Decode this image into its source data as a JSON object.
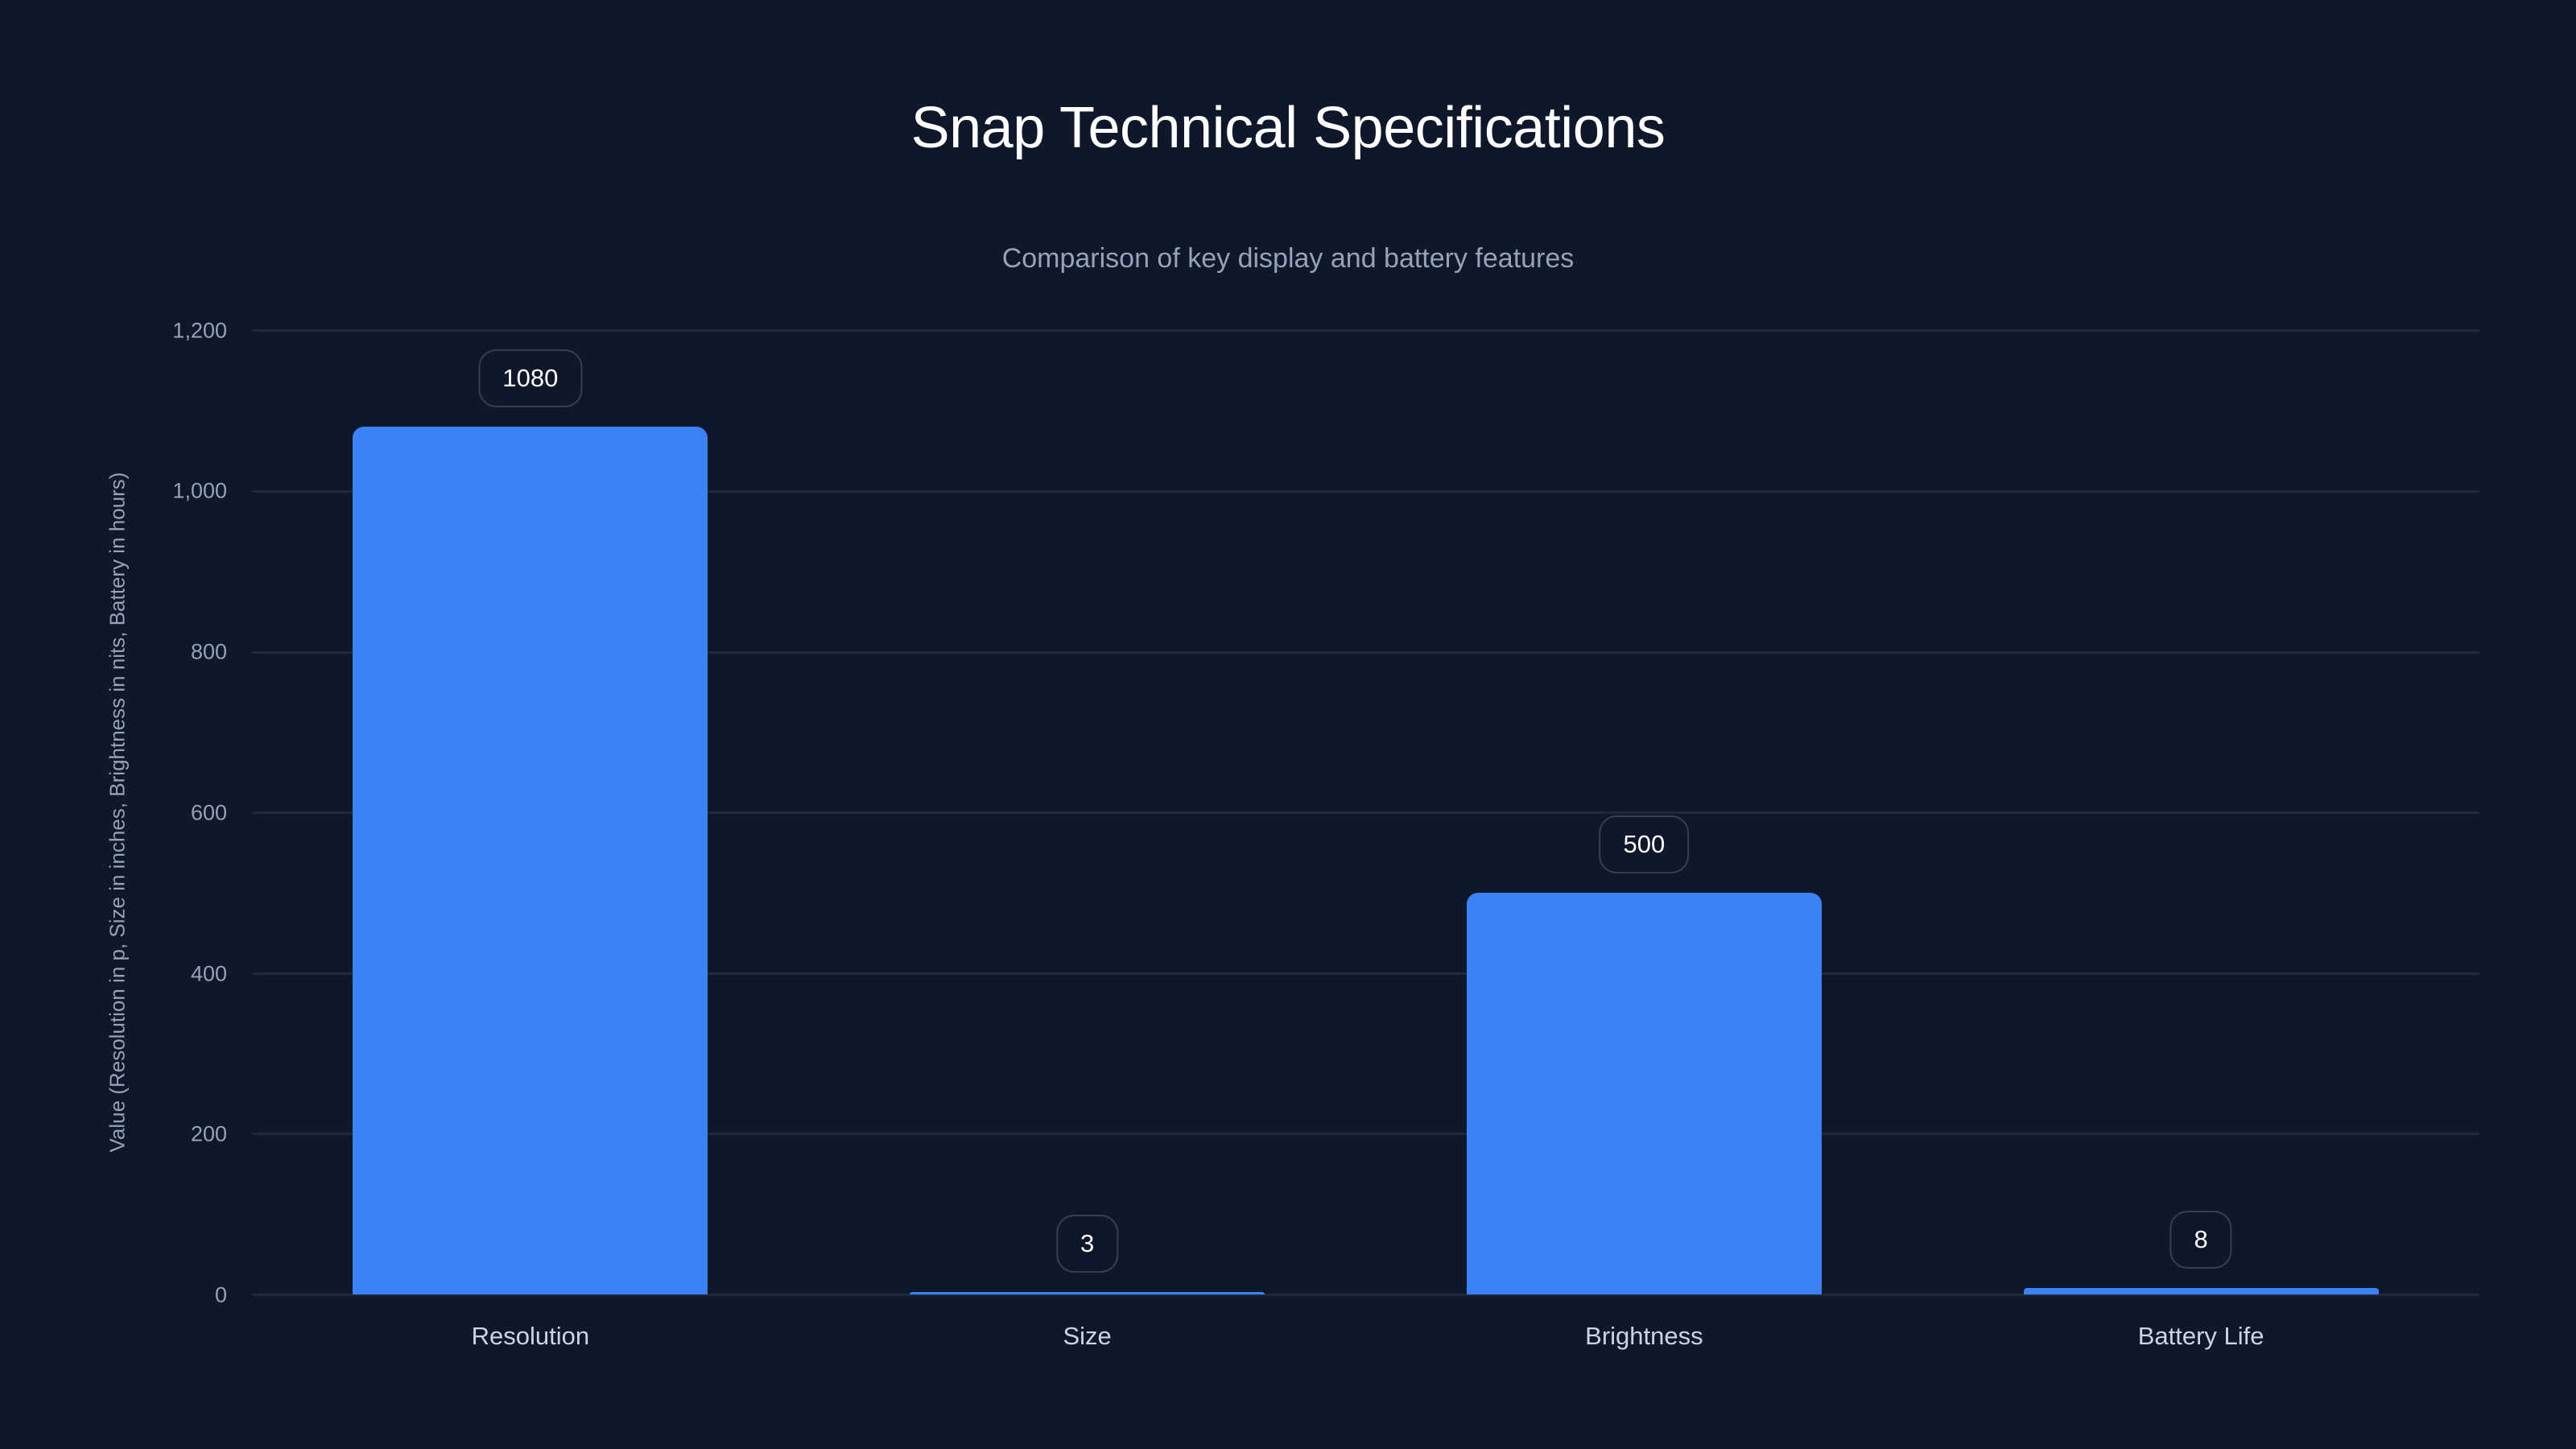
{
  "title": "Snap Technical Specifications",
  "subtitle": "Comparison of key display and battery features",
  "colors": {
    "background": "#0f172a",
    "bar": "#3b82f6",
    "grid": "#1e293b",
    "tick_text": "#94a3b8",
    "label_text": "#cbd5e1"
  },
  "chart_data": {
    "type": "bar",
    "title": "Snap Technical Specifications",
    "subtitle": "Comparison of key display and battery features",
    "categories": [
      "Resolution",
      "Size",
      "Brightness",
      "Battery Life"
    ],
    "values": [
      1080,
      3,
      500,
      8
    ],
    "data_labels": [
      "1080",
      "3",
      "500",
      "8"
    ],
    "xlabel": "",
    "ylabel": "Value (Resolution in p, Size in inches, Brightness in nits, Battery in hours)",
    "ylim": [
      0,
      1200
    ],
    "yticks": [
      0,
      200,
      400,
      600,
      800,
      1000,
      1200
    ],
    "ytick_labels": [
      "0",
      "200",
      "400",
      "600",
      "800",
      "1,000",
      "1,200"
    ],
    "grid": true,
    "legend": null
  }
}
